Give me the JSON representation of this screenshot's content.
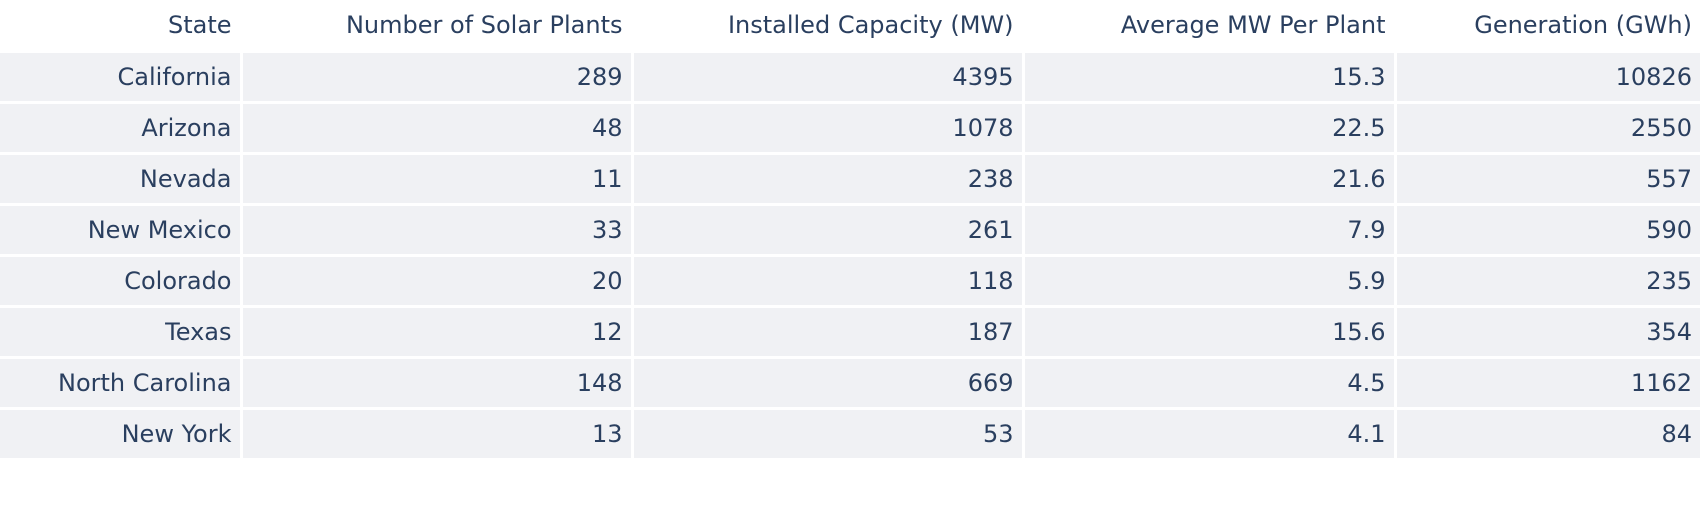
{
  "chart_data": {
    "type": "table",
    "columns": [
      "State",
      "Number of Solar Plants",
      "Installed Capacity (MW)",
      "Average MW Per Plant",
      "Generation (GWh)"
    ],
    "rows": [
      [
        "California",
        "289",
        "4395",
        "15.3",
        "10826"
      ],
      [
        "Arizona",
        "48",
        "1078",
        "22.5",
        "2550"
      ],
      [
        "Nevada",
        "11",
        "238",
        "21.6",
        "557"
      ],
      [
        "New Mexico",
        "33",
        "261",
        "7.9",
        "590"
      ],
      [
        "Colorado",
        "20",
        "118",
        "5.9",
        "235"
      ],
      [
        "Texas",
        "12",
        "187",
        "15.6",
        "354"
      ],
      [
        "North Carolina",
        "148",
        "669",
        "4.5",
        "1162"
      ],
      [
        "New York",
        "13",
        "53",
        "4.1",
        "84"
      ]
    ],
    "colors": {
      "header_fill": "#ffffff",
      "cell_fill": "#f0f1f4",
      "text": "#2a3f5f",
      "line": "#ffffff"
    }
  }
}
